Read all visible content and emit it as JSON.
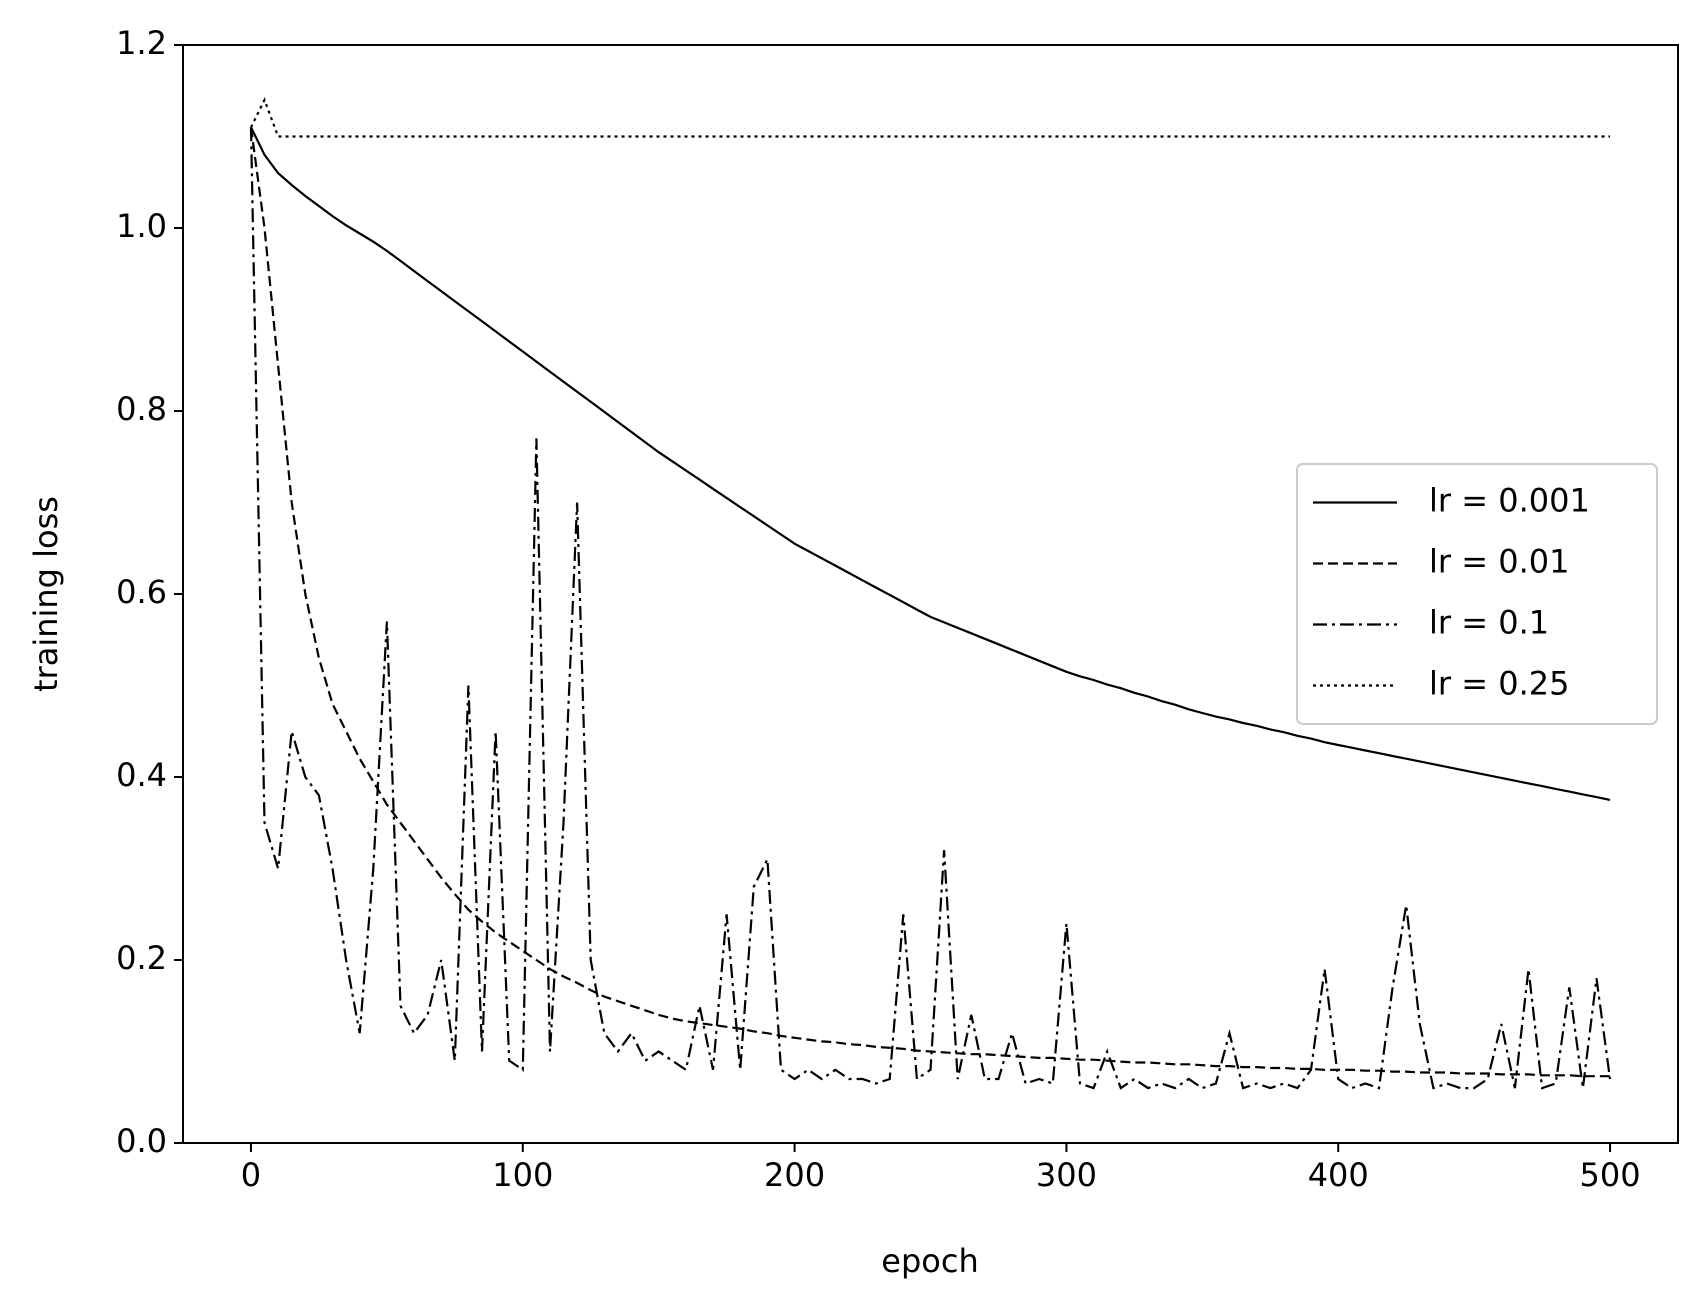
{
  "chart_data": {
    "type": "line",
    "xlabel": "epoch",
    "ylabel": "training loss",
    "xlim": [
      -25,
      525
    ],
    "xticks": [
      0,
      100,
      200,
      300,
      400,
      500
    ],
    "ylim": [
      0,
      1.2
    ],
    "yticks": [
      {
        "value": 0,
        "label": "0.0"
      },
      0.2,
      0.4,
      0.6,
      0.8,
      {
        "value": 1,
        "label": "1.0"
      },
      1.2
    ],
    "legend": "center right",
    "x": [
      0,
      5,
      10,
      15,
      20,
      25,
      30,
      35,
      40,
      45,
      50,
      55,
      60,
      65,
      70,
      75,
      80,
      85,
      90,
      95,
      100,
      105,
      110,
      115,
      120,
      125,
      130,
      135,
      140,
      145,
      150,
      155,
      160,
      165,
      170,
      175,
      180,
      185,
      190,
      195,
      200,
      205,
      210,
      215,
      220,
      225,
      230,
      235,
      240,
      245,
      250,
      255,
      260,
      265,
      270,
      275,
      280,
      285,
      290,
      295,
      300,
      305,
      310,
      315,
      320,
      325,
      330,
      335,
      340,
      345,
      350,
      355,
      360,
      365,
      370,
      375,
      380,
      385,
      390,
      395,
      400,
      405,
      410,
      415,
      420,
      425,
      430,
      435,
      440,
      445,
      450,
      455,
      460,
      465,
      470,
      475,
      480,
      485,
      490,
      495,
      500
    ],
    "series": [
      {
        "name": "lr = 0.001",
        "color": "#000000",
        "linestyle": "solid",
        "values": [
          1.11,
          1.08,
          1.06,
          1.047,
          1.035,
          1.024,
          1.013,
          1.003,
          0.994,
          0.985,
          0.975,
          0.964,
          0.953,
          0.942,
          0.931,
          0.92,
          0.909,
          0.898,
          0.887,
          0.876,
          0.865,
          0.854,
          0.843,
          0.832,
          0.821,
          0.81,
          0.799,
          0.788,
          0.777,
          0.766,
          0.755,
          0.745,
          0.735,
          0.725,
          0.715,
          0.705,
          0.695,
          0.685,
          0.675,
          0.665,
          0.655,
          0.647,
          0.639,
          0.631,
          0.623,
          0.615,
          0.607,
          0.599,
          0.591,
          0.583,
          0.575,
          0.569,
          0.563,
          0.557,
          0.551,
          0.545,
          0.539,
          0.533,
          0.527,
          0.521,
          0.515,
          0.51,
          0.506,
          0.501,
          0.497,
          0.492,
          0.488,
          0.483,
          0.479,
          0.474,
          0.47,
          0.466,
          0.463,
          0.459,
          0.456,
          0.452,
          0.449,
          0.445,
          0.442,
          0.438,
          0.435,
          0.432,
          0.429,
          0.426,
          0.423,
          0.42,
          0.417,
          0.414,
          0.411,
          0.408,
          0.405,
          0.402,
          0.399,
          0.396,
          0.393,
          0.39,
          0.387,
          0.384,
          0.381,
          0.378,
          0.375
        ]
      },
      {
        "name": "lr = 0.01",
        "color": "#000000",
        "linestyle": "dashed",
        "values": [
          1.11,
          1.0,
          0.85,
          0.7,
          0.6,
          0.53,
          0.48,
          0.45,
          0.42,
          0.395,
          0.37,
          0.35,
          0.33,
          0.31,
          0.29,
          0.272,
          0.255,
          0.242,
          0.23,
          0.22,
          0.21,
          0.2,
          0.19,
          0.182,
          0.175,
          0.167,
          0.16,
          0.155,
          0.15,
          0.145,
          0.14,
          0.136,
          0.133,
          0.131,
          0.129,
          0.127,
          0.125,
          0.122,
          0.12,
          0.117,
          0.115,
          0.113,
          0.111,
          0.11,
          0.108,
          0.107,
          0.105,
          0.104,
          0.103,
          0.101,
          0.1,
          0.099,
          0.098,
          0.097,
          0.097,
          0.096,
          0.095,
          0.094,
          0.093,
          0.093,
          0.092,
          0.091,
          0.091,
          0.09,
          0.089,
          0.088,
          0.088,
          0.087,
          0.086,
          0.086,
          0.085,
          0.084,
          0.084,
          0.083,
          0.083,
          0.082,
          0.082,
          0.081,
          0.081,
          0.08,
          0.08,
          0.08,
          0.079,
          0.079,
          0.078,
          0.078,
          0.077,
          0.077,
          0.077,
          0.076,
          0.076,
          0.076,
          0.075,
          0.075,
          0.075,
          0.074,
          0.074,
          0.074,
          0.073,
          0.073,
          0.073
        ]
      },
      {
        "name": "lr = 0.1",
        "color": "#000000",
        "linestyle": "dashdot",
        "values": [
          1.11,
          0.35,
          0.3,
          0.45,
          0.4,
          0.38,
          0.3,
          0.2,
          0.12,
          0.3,
          0.57,
          0.15,
          0.12,
          0.14,
          0.2,
          0.09,
          0.5,
          0.1,
          0.45,
          0.09,
          0.08,
          0.77,
          0.1,
          0.35,
          0.7,
          0.2,
          0.12,
          0.1,
          0.12,
          0.09,
          0.1,
          0.09,
          0.08,
          0.15,
          0.08,
          0.25,
          0.08,
          0.28,
          0.31,
          0.08,
          0.07,
          0.08,
          0.07,
          0.08,
          0.07,
          0.07,
          0.065,
          0.07,
          0.25,
          0.07,
          0.08,
          0.32,
          0.07,
          0.14,
          0.07,
          0.07,
          0.12,
          0.065,
          0.07,
          0.065,
          0.24,
          0.065,
          0.06,
          0.1,
          0.06,
          0.07,
          0.06,
          0.065,
          0.06,
          0.07,
          0.06,
          0.065,
          0.12,
          0.06,
          0.065,
          0.06,
          0.065,
          0.06,
          0.08,
          0.19,
          0.07,
          0.06,
          0.065,
          0.06,
          0.17,
          0.26,
          0.13,
          0.06,
          0.065,
          0.06,
          0.06,
          0.07,
          0.13,
          0.06,
          0.19,
          0.06,
          0.065,
          0.17,
          0.06,
          0.18,
          0.07
        ]
      },
      {
        "name": "lr = 0.25",
        "color": "#000000",
        "linestyle": "dotted",
        "values": [
          1.11,
          1.14,
          1.1,
          1.1,
          1.1,
          1.1,
          1.1,
          1.1,
          1.1,
          1.1,
          1.1,
          1.1,
          1.1,
          1.1,
          1.1,
          1.1,
          1.1,
          1.1,
          1.1,
          1.1,
          1.1,
          1.1,
          1.1,
          1.1,
          1.1,
          1.1,
          1.1,
          1.1,
          1.1,
          1.1,
          1.1,
          1.1,
          1.1,
          1.1,
          1.1,
          1.1,
          1.1,
          1.1,
          1.1,
          1.1,
          1.1,
          1.1,
          1.1,
          1.1,
          1.1,
          1.1,
          1.1,
          1.1,
          1.1,
          1.1,
          1.1,
          1.1,
          1.1,
          1.1,
          1.1,
          1.1,
          1.1,
          1.1,
          1.1,
          1.1,
          1.1,
          1.1,
          1.1,
          1.1,
          1.1,
          1.1,
          1.1,
          1.1,
          1.1,
          1.1,
          1.1,
          1.1,
          1.1,
          1.1,
          1.1,
          1.1,
          1.1,
          1.1,
          1.1,
          1.1,
          1.1,
          1.1,
          1.1,
          1.1,
          1.1,
          1.1,
          1.1,
          1.1,
          1.1,
          1.1,
          1.1,
          1.1,
          1.1,
          1.1,
          1.1,
          1.1,
          1.1,
          1.1,
          1.1,
          1.1,
          1.1
        ]
      }
    ]
  }
}
